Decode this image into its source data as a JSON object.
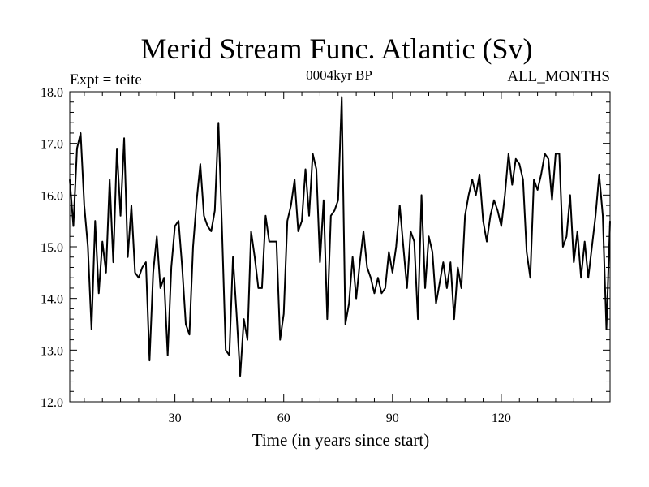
{
  "chart_data": {
    "type": "line",
    "title": "Merid Stream Func. Atlantic (Sv)",
    "subtitle": "0004kyr BP",
    "annotation_left": "Expt = teite",
    "annotation_right": "ALL_MONTHS",
    "xlabel": "Time (in years since start)",
    "ylabel": "",
    "xlim": [
      1,
      150
    ],
    "ylim": [
      12.0,
      18.0
    ],
    "x_ticks": [
      30,
      60,
      90,
      120
    ],
    "x_tick_labels": [
      "30",
      "60",
      "90",
      "120"
    ],
    "y_ticks": [
      12.0,
      13.0,
      14.0,
      15.0,
      16.0,
      17.0,
      18.0
    ],
    "y_tick_labels": [
      "12.0",
      "13.0",
      "14.0",
      "15.0",
      "16.0",
      "17.0",
      "18.0"
    ],
    "grid": false,
    "line_color": "#000000",
    "series": [
      {
        "name": "Merid Stream Func. Atlantic",
        "values": [
          16.3,
          15.4,
          16.9,
          17.2,
          15.8,
          15.0,
          13.4,
          15.5,
          14.1,
          15.1,
          14.5,
          16.3,
          14.7,
          16.9,
          15.6,
          17.1,
          14.8,
          15.8,
          14.5,
          14.4,
          14.6,
          14.7,
          12.8,
          14.5,
          15.2,
          14.2,
          14.4,
          12.9,
          14.6,
          15.4,
          15.5,
          14.6,
          13.5,
          13.3,
          15.0,
          15.9,
          16.6,
          15.6,
          15.4,
          15.3,
          15.7,
          17.4,
          15.3,
          13.0,
          12.9,
          14.8,
          13.7,
          12.5,
          13.6,
          13.2,
          15.3,
          14.8,
          14.2,
          14.2,
          15.6,
          15.1,
          15.1,
          15.1,
          13.2,
          13.7,
          15.5,
          15.8,
          16.3,
          15.3,
          15.5,
          16.5,
          15.6,
          16.8,
          16.5,
          14.7,
          15.9,
          13.6,
          15.6,
          15.7,
          15.9,
          17.9,
          13.5,
          13.9,
          14.8,
          14.0,
          14.7,
          15.3,
          14.6,
          14.4,
          14.1,
          14.4,
          14.1,
          14.2,
          14.9,
          14.5,
          15.0,
          15.8,
          15.0,
          14.2,
          15.3,
          15.1,
          13.6,
          16.0,
          14.2,
          15.2,
          14.9,
          13.9,
          14.3,
          14.7,
          14.2,
          14.7,
          13.6,
          14.6,
          14.2,
          15.6,
          16.0,
          16.3,
          16.0,
          16.4,
          15.5,
          15.1,
          15.6,
          15.9,
          15.7,
          15.4,
          16.0,
          16.8,
          16.2,
          16.7,
          16.6,
          16.3,
          14.9,
          14.4,
          16.3,
          16.1,
          16.4,
          16.8,
          16.7,
          15.9,
          16.8,
          16.8,
          15.0,
          15.2,
          16.0,
          14.7,
          15.3,
          14.4,
          15.1,
          14.4,
          15.0,
          15.6,
          16.4,
          15.6,
          13.4,
          15.5
        ]
      }
    ]
  }
}
